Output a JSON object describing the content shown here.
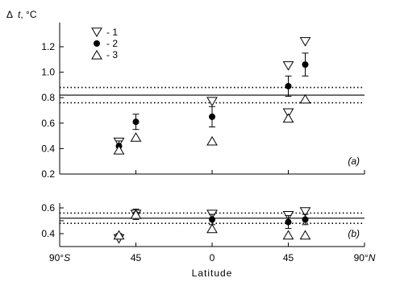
{
  "chart_data": [
    {
      "type": "scatter",
      "id": "a",
      "panel_label": "(a)",
      "ylabel_prefix": "Δ",
      "ylabel_var": "t",
      "ylabel_unit": ", °C",
      "ylim": [
        0.2,
        1.3
      ],
      "yticks": [
        0.2,
        0.4,
        0.6,
        0.8,
        1.0,
        1.2
      ],
      "ytick_labels": [
        "0.2",
        "0.4",
        "0.6",
        "0.8",
        "1.0",
        "1.2"
      ],
      "reference_lines": [
        {
          "value": 0.82,
          "style": "solid"
        },
        {
          "value": 0.88,
          "style": "dotted"
        },
        {
          "value": 0.76,
          "style": "dotted"
        }
      ],
      "legend": [
        {
          "marker": "triangle-down",
          "label": "- 1"
        },
        {
          "marker": "filled-circle",
          "label": "- 2"
        },
        {
          "marker": "triangle-up",
          "label": "- 3"
        }
      ],
      "series": [
        {
          "name": "1",
          "marker": "triangle-down",
          "points": [
            [
              -55,
              0.45
            ],
            [
              45,
              0.68
            ],
            [
              0,
              0.77
            ],
            [
              45,
              1.05
            ],
            [
              55,
              1.24
            ]
          ]
        },
        {
          "name": "2",
          "marker": "filled-circle",
          "points": [
            [
              -55,
              0.42
            ],
            [
              -45,
              0.61
            ],
            [
              0,
              0.65
            ],
            [
              45,
              0.89
            ],
            [
              55,
              1.06
            ]
          ],
          "errors": [
            0.04,
            0.06,
            0.08,
            0.08,
            0.09
          ]
        },
        {
          "name": "3",
          "marker": "triangle-up",
          "points": [
            [
              -55,
              0.39
            ],
            [
              -45,
              0.49
            ],
            [
              0,
              0.46
            ],
            [
              45,
              0.64
            ],
            [
              55,
              0.79
            ]
          ]
        }
      ]
    },
    {
      "type": "scatter",
      "id": "b",
      "panel_label": "(b)",
      "ylim": [
        0.3,
        0.62
      ],
      "yticks": [
        0.4,
        0.5,
        0.6
      ],
      "ytick_labels": [
        "0.4",
        "",
        "0.6"
      ],
      "reference_lines": [
        {
          "value": 0.52,
          "style": "solid"
        },
        {
          "value": 0.56,
          "style": "dotted"
        },
        {
          "value": 0.48,
          "style": "dotted"
        }
      ],
      "series": [
        {
          "name": "1",
          "marker": "triangle-down",
          "points": [
            [
              -55,
              0.36
            ],
            [
              -45,
              0.55
            ],
            [
              0,
              0.55
            ],
            [
              45,
              0.54
            ],
            [
              55,
              0.57
            ]
          ]
        },
        {
          "name": "2",
          "marker": "filled-circle",
          "points": [
            [
              -55,
              0.38
            ],
            [
              -45,
              0.55
            ],
            [
              0,
              0.51
            ],
            [
              45,
              0.49
            ],
            [
              55,
              0.51
            ]
          ],
          "errors": [
            0.02,
            0.04,
            0.04,
            0.05,
            0.04
          ]
        },
        {
          "name": "3",
          "marker": "triangle-up",
          "points": [
            [
              -55,
              0.39
            ],
            [
              -45,
              0.55
            ],
            [
              0,
              0.44
            ],
            [
              45,
              0.39
            ],
            [
              55,
              0.39
            ]
          ]
        }
      ]
    }
  ],
  "x_axis": {
    "label": "Latitude",
    "xlim": [
      -90,
      90
    ],
    "ticks": [
      {
        "value": -90,
        "num": "90°",
        "suffix": "S"
      },
      {
        "value": -45,
        "num": "45",
        "suffix": ""
      },
      {
        "value": 0,
        "num": "0",
        "suffix": ""
      },
      {
        "value": 45,
        "num": "45",
        "suffix": ""
      },
      {
        "value": 90,
        "num": "90°",
        "suffix": "N"
      }
    ]
  }
}
